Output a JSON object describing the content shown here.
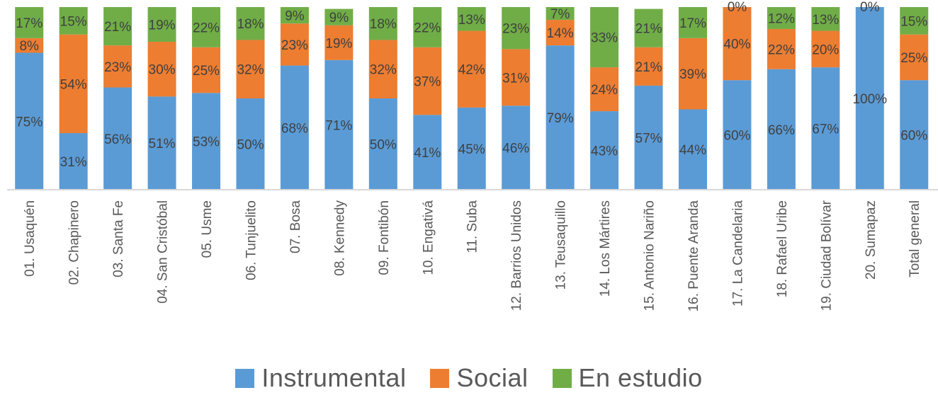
{
  "chart_data": {
    "type": "bar",
    "stacked": true,
    "percent_stacked": true,
    "categories": [
      "01. Usaquén",
      "02. Chapinero",
      "03. Santa Fe",
      "04. San Cristóbal",
      "05. Usme",
      "06. Tunjuelito",
      "07. Bosa",
      "08. Kennedy",
      "09. Fontibón",
      "10. Engativá",
      "11. Suba",
      "12. Barrios Unidos",
      "13. Teusaquillo",
      "14. Los Mártires",
      "15. Antonio Nariño",
      "16. Puente Aranda",
      "17. La Candelaria",
      "18. Rafael Uribe",
      "19. Ciudad Bolívar",
      "20. Sumapaz",
      "Total general"
    ],
    "series": [
      {
        "name": "Instrumental",
        "color": "#5B9BD5",
        "values": [
          75,
          31,
          56,
          51,
          53,
          50,
          68,
          71,
          50,
          41,
          45,
          46,
          79,
          43,
          57,
          44,
          60,
          66,
          67,
          100,
          60
        ],
        "labels": [
          "75%",
          "31%",
          "56%",
          "51%",
          "53%",
          "50%",
          "68%",
          "71%",
          "50%",
          "41%",
          "45%",
          "46%",
          "79%",
          "43%",
          "57%",
          "44%",
          "60%",
          "66%",
          "67%",
          "100%",
          "60%"
        ]
      },
      {
        "name": "Social",
        "color": "#ED7D31",
        "values": [
          8,
          54,
          23,
          30,
          25,
          32,
          23,
          19,
          32,
          37,
          42,
          31,
          14,
          24,
          21,
          39,
          40,
          22,
          20,
          0,
          25
        ],
        "labels": [
          "8%",
          "54%",
          "23%",
          "30%",
          "25%",
          "32%",
          "23%",
          "19%",
          "32%",
          "37%",
          "42%",
          "31%",
          "14%",
          "24%",
          "21%",
          "39%",
          "40%",
          "22%",
          "20%",
          "",
          "25%"
        ]
      },
      {
        "name": "En estudio",
        "color": "#70AD47",
        "values": [
          17,
          15,
          21,
          19,
          22,
          18,
          9,
          9,
          18,
          22,
          13,
          23,
          7,
          33,
          21,
          17,
          0,
          12,
          13,
          0,
          15
        ],
        "labels": [
          "17%",
          "15%",
          "21%",
          "19%",
          "22%",
          "18%",
          "9%",
          "9%",
          "18%",
          "22%",
          "13%",
          "23%",
          "7%",
          "33%",
          "21%",
          "17%",
          "0%",
          "12%",
          "13%",
          "0%",
          "15%"
        ]
      }
    ],
    "ylim": [
      0,
      100
    ],
    "grid": false,
    "legend": "bottom"
  }
}
